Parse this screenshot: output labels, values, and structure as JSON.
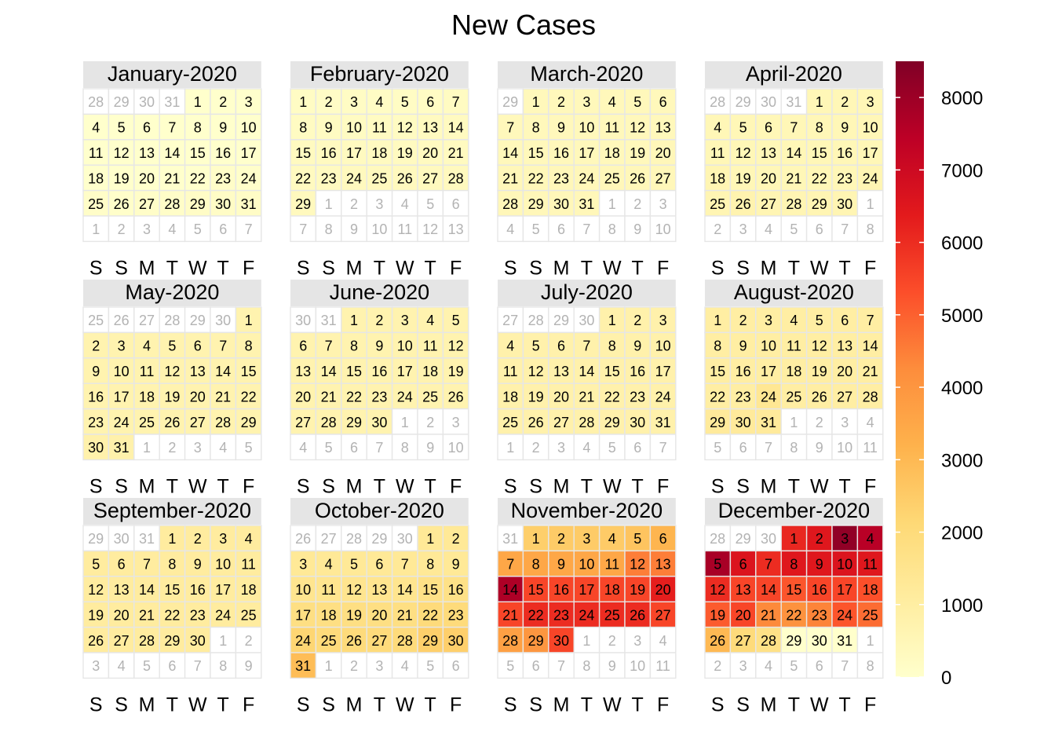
{
  "chart_data": {
    "type": "heatmap",
    "title": "New Cases",
    "year": 2020,
    "weekday_labels": [
      "S",
      "S",
      "M",
      "T",
      "W",
      "T",
      "F"
    ],
    "week_start": "Saturday",
    "color_scale": {
      "min": 0,
      "max": 8500,
      "ticks": [
        0,
        1000,
        2000,
        3000,
        4000,
        5000,
        6000,
        7000,
        8000
      ],
      "colors": [
        "#ffffcc",
        "#ffeda0",
        "#fed976",
        "#feb24c",
        "#fd8d3c",
        "#fc4e2a",
        "#e31a1c",
        "#bd0026",
        "#800026"
      ]
    },
    "months": [
      {
        "label": "January-2020",
        "days": 31,
        "values": [
          0,
          0,
          0,
          0,
          0,
          0,
          0,
          0,
          0,
          0,
          0,
          0,
          0,
          0,
          0,
          0,
          0,
          0,
          0,
          0,
          0,
          0,
          100,
          50,
          100,
          50,
          100,
          100,
          150,
          150,
          150
        ]
      },
      {
        "label": "February-2020",
        "days": 29,
        "values": [
          200,
          150,
          200,
          200,
          200,
          200,
          250,
          250,
          250,
          250,
          250,
          250,
          300,
          300,
          300,
          300,
          300,
          300,
          300,
          300,
          300,
          300,
          300,
          350,
          350,
          350,
          350,
          350,
          350
        ]
      },
      {
        "label": "March-2020",
        "days": 31,
        "values": [
          400,
          400,
          400,
          400,
          400,
          400,
          400,
          400,
          400,
          400,
          400,
          400,
          400,
          400,
          400,
          400,
          400,
          400,
          400,
          450,
          450,
          450,
          450,
          450,
          450,
          450,
          450,
          450,
          450,
          450,
          450
        ]
      },
      {
        "label": "April-2020",
        "days": 30,
        "values": [
          500,
          500,
          500,
          500,
          500,
          500,
          500,
          500,
          500,
          500,
          500,
          500,
          500,
          500,
          500,
          500,
          500,
          600,
          500,
          500,
          500,
          500,
          500,
          600,
          600,
          700,
          600,
          600,
          600,
          600
        ]
      },
      {
        "label": "May-2020",
        "days": 31,
        "values": [
          700,
          700,
          700,
          700,
          700,
          700,
          700,
          700,
          700,
          700,
          700,
          700,
          700,
          700,
          700,
          700,
          700,
          700,
          700,
          700,
          700,
          700,
          700,
          700,
          700,
          700,
          700,
          700,
          700,
          800,
          800
        ]
      },
      {
        "label": "June-2020",
        "days": 30,
        "values": [
          700,
          700,
          700,
          700,
          700,
          700,
          700,
          700,
          700,
          700,
          700,
          700,
          700,
          700,
          700,
          700,
          700,
          700,
          700,
          700,
          700,
          700,
          700,
          700,
          700,
          700,
          700,
          700,
          700,
          700
        ]
      },
      {
        "label": "July-2020",
        "days": 31,
        "values": [
          800,
          800,
          800,
          800,
          800,
          800,
          800,
          800,
          800,
          800,
          800,
          800,
          800,
          800,
          800,
          800,
          800,
          800,
          800,
          800,
          800,
          800,
          800,
          800,
          800,
          800,
          800,
          800,
          800,
          800,
          800
        ]
      },
      {
        "label": "August-2020",
        "days": 31,
        "values": [
          1000,
          1000,
          1000,
          1000,
          1000,
          1000,
          1000,
          1000,
          1000,
          1000,
          1000,
          1000,
          1000,
          1000,
          1000,
          1000,
          1000,
          1000,
          1000,
          1000,
          1000,
          1000,
          1000,
          1400,
          1000,
          1000,
          1000,
          1000,
          1200,
          1200,
          1200
        ]
      },
      {
        "label": "September-2020",
        "days": 30,
        "values": [
          1100,
          1100,
          1100,
          1100,
          1100,
          1100,
          1100,
          1100,
          1100,
          1100,
          1100,
          1100,
          1100,
          1100,
          1100,
          1100,
          1100,
          1100,
          1100,
          1100,
          1100,
          1100,
          1100,
          1100,
          1100,
          1100,
          1100,
          1100,
          1100,
          1100
        ]
      },
      {
        "label": "October-2020",
        "days": 31,
        "values": [
          1300,
          1300,
          1300,
          1300,
          1300,
          1300,
          1300,
          1300,
          1300,
          1500,
          1500,
          1500,
          1500,
          1500,
          1700,
          1700,
          1800,
          1800,
          1800,
          1800,
          1800,
          2000,
          2000,
          2200,
          2000,
          2000,
          2000,
          2000,
          2400,
          2400,
          2900
        ]
      },
      {
        "label": "November-2020",
        "days": 30,
        "values": [
          2400,
          2500,
          2500,
          2500,
          2700,
          3100,
          3500,
          3500,
          3500,
          3500,
          3500,
          4500,
          4500,
          7700,
          5500,
          5500,
          5500,
          5500,
          5500,
          6300,
          5500,
          6000,
          6000,
          6000,
          6000,
          6000,
          5500,
          3700,
          4000,
          5500
        ]
      },
      {
        "label": "December-2020",
        "days": 31,
        "values": [
          6100,
          6500,
          8200,
          7500,
          7800,
          6600,
          6000,
          6500,
          6500,
          6600,
          6500,
          6000,
          5500,
          5500,
          5200,
          5500,
          5500,
          5300,
          5100,
          5500,
          4300,
          4100,
          4400,
          5200,
          4800,
          3000,
          2000,
          1700,
          0,
          0,
          0
        ]
      }
    ]
  }
}
